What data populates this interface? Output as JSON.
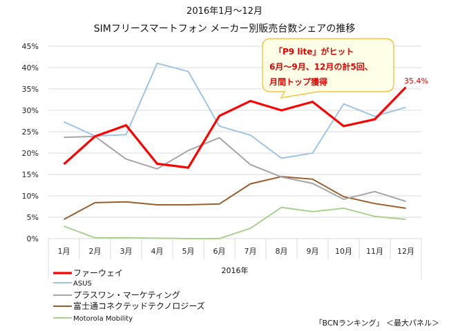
{
  "chart_data": {
    "type": "line",
    "title": "2016年1月～12月",
    "subtitle": "SIMフリースマートフォン メーカー別販売台数シェアの推移",
    "xlabel": "2016年",
    "ylabel": "",
    "categories": [
      "1月",
      "2月",
      "3月",
      "4月",
      "5月",
      "6月",
      "7月",
      "8月",
      "9月",
      "10月",
      "11月",
      "12月"
    ],
    "ylim": [
      0,
      45
    ],
    "yticks": [
      0,
      5,
      10,
      15,
      20,
      25,
      30,
      35,
      40,
      45
    ],
    "ytick_labels": [
      "0%",
      "5%",
      "10%",
      "15%",
      "20%",
      "25%",
      "30%",
      "35%",
      "40%",
      "45%"
    ],
    "grid": true,
    "legend_position": "bottom-left",
    "series": [
      {
        "name": "ファーウェイ",
        "color": "#ff0000",
        "emphasis": true,
        "values": [
          17.4,
          23.9,
          26.5,
          17.5,
          16.6,
          28.7,
          32.2,
          30.0,
          32.0,
          26.3,
          27.9,
          35.4
        ]
      },
      {
        "name": "ASUS",
        "color": "#9dc3e6",
        "emphasis": false,
        "values": [
          27.3,
          24.0,
          24.3,
          41.0,
          39.1,
          26.3,
          24.2,
          18.8,
          20.0,
          31.5,
          28.6,
          30.7
        ]
      },
      {
        "name": "プラスワン・マーケティング",
        "color": "#a5a5a5",
        "emphasis": false,
        "values": [
          23.7,
          23.9,
          18.6,
          16.3,
          20.6,
          23.6,
          17.3,
          14.4,
          12.9,
          9.2,
          11.0,
          8.7
        ]
      },
      {
        "name": "富士通コネクテッドテクノロジーズ",
        "color": "#9c5c2a",
        "emphasis": false,
        "values": [
          4.5,
          8.4,
          8.6,
          7.9,
          7.9,
          8.1,
          12.8,
          14.5,
          13.9,
          9.8,
          8.2,
          7.1
        ]
      },
      {
        "name": "Motorola Mobility",
        "color": "#a9d18e",
        "emphasis": false,
        "values": [
          2.9,
          0.2,
          0.2,
          0.1,
          0.0,
          0.0,
          2.4,
          7.3,
          6.3,
          7.1,
          5.2,
          4.5
        ]
      }
    ],
    "annotations": [
      {
        "type": "data-label",
        "series": "ファーウェイ",
        "category": "12月",
        "text": "35.4%"
      },
      {
        "type": "callout",
        "lines": [
          "「P9 lite」がヒット",
          "6月～9月、12月の計5回、",
          "月間トップ獲得"
        ]
      }
    ],
    "source": "「BCNランキング」 ＜最大パネル＞"
  },
  "colors": {
    "callout_fill": "#ffffe8",
    "callout_border": "#f5b81e",
    "callout_text": "#e60000",
    "gridline": "#d9d9d9"
  }
}
